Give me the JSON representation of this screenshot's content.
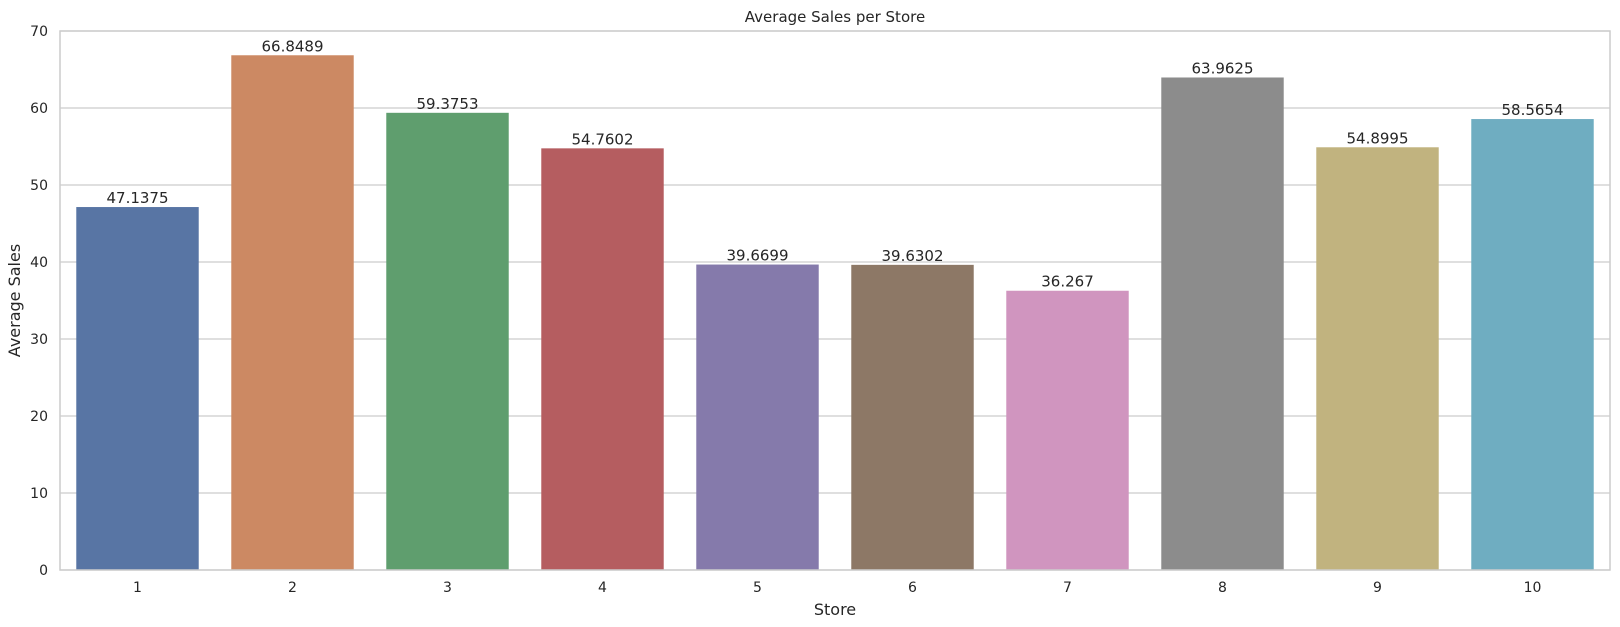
{
  "chart_data": {
    "type": "bar",
    "title": "Average Sales per Store",
    "xlabel": "Store",
    "ylabel": "Average Sales",
    "categories": [
      "1",
      "2",
      "3",
      "4",
      "5",
      "6",
      "7",
      "8",
      "9",
      "10"
    ],
    "values": [
      47.1375,
      66.8489,
      59.3753,
      54.7602,
      39.6699,
      39.6302,
      36.267,
      63.9625,
      54.8995,
      58.5654
    ],
    "data_labels": [
      "47.1375",
      "66.8489",
      "59.3753",
      "54.7602",
      "39.6699",
      "39.6302",
      "36.267",
      "63.9625",
      "54.8995",
      "58.5654"
    ],
    "ylim": [
      0,
      70
    ],
    "yticks": [
      0,
      10,
      20,
      30,
      40,
      50,
      60,
      70
    ],
    "grid": "horizontal",
    "colors": [
      "#5875a4",
      "#cc8963",
      "#5f9e6e",
      "#b55d60",
      "#857aab",
      "#8d7866",
      "#d095bf",
      "#8c8c8c",
      "#c1b37f",
      "#6fadc1"
    ]
  }
}
